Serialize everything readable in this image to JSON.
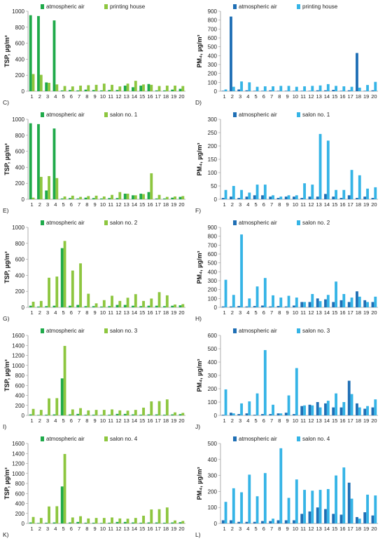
{
  "colors": {
    "dark_green": "#1faa4a",
    "light_green": "#8dc63f",
    "dark_blue": "#1f6fb5",
    "light_blue": "#35b4e6"
  },
  "chart_data": [
    {
      "type": "bar",
      "panel_label": "C)",
      "ylabel": "TSP, µg/m³",
      "ylim": [
        0,
        1000
      ],
      "yticks": [
        0,
        200,
        400,
        600,
        800,
        1000
      ],
      "categories": [
        "1",
        "2",
        "3",
        "4",
        "5",
        "6",
        "7",
        "8",
        "9",
        "10",
        "11",
        "12",
        "13",
        "14",
        "15",
        "16",
        "17",
        "18",
        "19",
        "20"
      ],
      "legend_position": "top-left",
      "series": [
        {
          "name": "atmospheric air",
          "color": "dark_green",
          "values": [
            950,
            940,
            110,
            885,
            10,
            15,
            10,
            20,
            15,
            10,
            15,
            15,
            70,
            50,
            70,
            90,
            10,
            10,
            20,
            30
          ]
        },
        {
          "name": "printing house",
          "color": "light_green",
          "values": [
            215,
            205,
            105,
            85,
            65,
            60,
            70,
            75,
            80,
            95,
            80,
            60,
            95,
            130,
            85,
            80,
            65,
            70,
            70,
            65
          ]
        }
      ]
    },
    {
      "type": "bar",
      "panel_label": "D)",
      "ylabel": "PM₄, µg/m³",
      "ylim": [
        0,
        900
      ],
      "yticks": [
        0,
        100,
        200,
        300,
        400,
        500,
        600,
        700,
        800,
        900
      ],
      "categories": [
        "1",
        "2",
        "3",
        "4",
        "5",
        "6",
        "7",
        "8",
        "9",
        "10",
        "11",
        "12",
        "13",
        "14",
        "15",
        "16",
        "17",
        "18",
        "19",
        "20"
      ],
      "legend_position": "top-left",
      "series": [
        {
          "name": "atmospheric air",
          "color": "dark_blue",
          "values": [
            5,
            840,
            20,
            10,
            5,
            5,
            10,
            5,
            5,
            5,
            5,
            5,
            10,
            10,
            15,
            5,
            10,
            430,
            5,
            10
          ]
        },
        {
          "name": "printing house",
          "color": "light_blue",
          "values": [
            20,
            50,
            110,
            100,
            50,
            55,
            55,
            60,
            60,
            50,
            55,
            60,
            65,
            80,
            60,
            55,
            50,
            40,
            70,
            105
          ]
        }
      ]
    },
    {
      "type": "bar",
      "panel_label": "E)",
      "ylabel": "TSP, µg/m³",
      "ylim": [
        0,
        1000
      ],
      "yticks": [
        0,
        200,
        400,
        600,
        800,
        1000
      ],
      "categories": [
        "1",
        "2",
        "3",
        "4",
        "5",
        "6",
        "7",
        "8",
        "9",
        "10",
        "11",
        "12",
        "13",
        "14",
        "15",
        "16",
        "17",
        "18",
        "19",
        "20"
      ],
      "legend_position": "top-left",
      "series": [
        {
          "name": "atmospheric air",
          "color": "dark_green",
          "values": [
            950,
            940,
            110,
            885,
            10,
            15,
            10,
            20,
            15,
            10,
            15,
            15,
            70,
            50,
            70,
            90,
            10,
            10,
            20,
            30
          ]
        },
        {
          "name": "salon no. 1",
          "color": "light_green",
          "values": [
            20,
            280,
            290,
            265,
            35,
            45,
            30,
            40,
            45,
            35,
            55,
            90,
            70,
            50,
            65,
            325,
            55,
            30,
            35,
            40
          ]
        }
      ]
    },
    {
      "type": "bar",
      "panel_label": "F)",
      "ylabel": "PM₄, µg/m³",
      "ylim": [
        0,
        300
      ],
      "yticks": [
        0,
        50,
        100,
        150,
        200,
        250,
        300
      ],
      "categories": [
        "1",
        "2",
        "3",
        "4",
        "5",
        "6",
        "7",
        "8",
        "9",
        "10",
        "11",
        "12",
        "13",
        "14",
        "15",
        "16",
        "17",
        "18",
        "19",
        "20"
      ],
      "legend_position": "top-left",
      "series": [
        {
          "name": "atmospheric air",
          "color": "dark_blue",
          "values": [
            5,
            10,
            5,
            10,
            15,
            15,
            10,
            5,
            10,
            10,
            5,
            10,
            10,
            20,
            10,
            5,
            15,
            5,
            10,
            5
          ]
        },
        {
          "name": "salon no. 1",
          "color": "light_blue",
          "values": [
            35,
            50,
            35,
            25,
            55,
            55,
            15,
            10,
            15,
            15,
            60,
            55,
            245,
            220,
            35,
            35,
            110,
            90,
            40,
            45
          ]
        }
      ]
    },
    {
      "type": "bar",
      "panel_label": "G)",
      "ylabel": "TSP, µg/m³",
      "ylim": [
        0,
        1000
      ],
      "yticks": [
        0,
        200,
        400,
        600,
        800,
        1000
      ],
      "categories": [
        "1",
        "2",
        "3",
        "4",
        "5",
        "6",
        "7",
        "8",
        "9",
        "10",
        "11",
        "12",
        "13",
        "14",
        "15",
        "16",
        "17",
        "18",
        "19",
        "20"
      ],
      "legend_position": "top-left",
      "series": [
        {
          "name": "atmospheric air",
          "color": "dark_green",
          "values": [
            20,
            10,
            15,
            20,
            740,
            20,
            30,
            15,
            15,
            10,
            15,
            30,
            30,
            20,
            15,
            20,
            20,
            15,
            20,
            25
          ]
        },
        {
          "name": "salon no. 2",
          "color": "light_green",
          "values": [
            70,
            80,
            370,
            385,
            830,
            460,
            550,
            170,
            50,
            90,
            145,
            80,
            120,
            165,
            80,
            110,
            190,
            150,
            35,
            40
          ]
        }
      ]
    },
    {
      "type": "bar",
      "panel_label": "H)",
      "ylabel": "PM₄, µg/m³",
      "ylim": [
        0,
        900
      ],
      "yticks": [
        0,
        100,
        200,
        300,
        400,
        500,
        600,
        700,
        800,
        900
      ],
      "categories": [
        "1",
        "2",
        "3",
        "4",
        "5",
        "6",
        "7",
        "8",
        "9",
        "10",
        "11",
        "12",
        "13",
        "14",
        "15",
        "16",
        "17",
        "18",
        "19",
        "20"
      ],
      "legend_position": "top-left",
      "series": [
        {
          "name": "atmospheric air",
          "color": "dark_blue",
          "values": [
            10,
            10,
            15,
            10,
            15,
            20,
            10,
            15,
            10,
            20,
            60,
            60,
            100,
            90,
            60,
            80,
            60,
            180,
            80,
            60
          ]
        },
        {
          "name": "salon no. 2",
          "color": "light_blue",
          "values": [
            310,
            140,
            820,
            100,
            235,
            330,
            135,
            110,
            130,
            110,
            60,
            150,
            70,
            140,
            290,
            150,
            110,
            120,
            60,
            120
          ]
        }
      ]
    },
    {
      "type": "bar",
      "panel_label": "I)",
      "ylabel": "TSP, µg/m³",
      "ylim": [
        0,
        1600
      ],
      "yticks": [
        0,
        200,
        400,
        600,
        800,
        1000,
        1200,
        1400,
        1600
      ],
      "categories": [
        "1",
        "2",
        "3",
        "4",
        "5",
        "6",
        "7",
        "8",
        "9",
        "10",
        "11",
        "12",
        "13",
        "14",
        "15",
        "16",
        "17",
        "18",
        "19",
        "20"
      ],
      "legend_position": "top-left",
      "series": [
        {
          "name": "atmospheric air",
          "color": "dark_green",
          "values": [
            20,
            10,
            15,
            20,
            740,
            20,
            30,
            15,
            15,
            10,
            15,
            30,
            30,
            20,
            15,
            20,
            20,
            15,
            20,
            25
          ]
        },
        {
          "name": "salon no. 3",
          "color": "light_green",
          "values": [
            130,
            110,
            340,
            345,
            1390,
            120,
            145,
            100,
            110,
            110,
            120,
            100,
            95,
            110,
            155,
            280,
            285,
            320,
            60,
            50
          ]
        }
      ]
    },
    {
      "type": "bar",
      "panel_label": "J)",
      "ylabel": "PM₄, µg/m³",
      "ylim": [
        0,
        600
      ],
      "yticks": [
        0,
        100,
        200,
        300,
        400,
        500,
        600
      ],
      "categories": [
        "1",
        "2",
        "3",
        "4",
        "5",
        "6",
        "7",
        "8",
        "9",
        "10",
        "11",
        "12",
        "13",
        "14",
        "15",
        "16",
        "17",
        "18",
        "19",
        "20"
      ],
      "legend_position": "top-left",
      "series": [
        {
          "name": "atmospheric air",
          "color": "dark_blue",
          "values": [
            5,
            20,
            10,
            15,
            5,
            10,
            10,
            15,
            20,
            10,
            70,
            80,
            100,
            90,
            60,
            60,
            260,
            90,
            50,
            60
          ]
        },
        {
          "name": "salon no. 3",
          "color": "light_blue",
          "values": [
            195,
            15,
            90,
            105,
            165,
            490,
            80,
            15,
            150,
            355,
            75,
            75,
            60,
            110,
            165,
            100,
            160,
            60,
            70,
            120
          ]
        }
      ]
    },
    {
      "type": "bar",
      "panel_label": "K)",
      "ylabel": "TSP, µg/m³",
      "ylim": [
        0,
        1600
      ],
      "yticks": [
        0,
        200,
        400,
        600,
        800,
        1000,
        1200,
        1400,
        1600
      ],
      "categories": [
        "1",
        "2",
        "3",
        "4",
        "5",
        "6",
        "7",
        "8",
        "9",
        "10",
        "11",
        "12",
        "13",
        "14",
        "15",
        "16",
        "17",
        "18",
        "19",
        "20"
      ],
      "legend_position": "top-left",
      "series": [
        {
          "name": "atmospheric air",
          "color": "dark_green",
          "values": [
            20,
            10,
            15,
            20,
            740,
            20,
            30,
            15,
            15,
            10,
            15,
            30,
            30,
            20,
            15,
            20,
            20,
            15,
            20,
            25
          ]
        },
        {
          "name": "salon no. 4",
          "color": "light_green",
          "values": [
            130,
            110,
            340,
            345,
            1390,
            120,
            145,
            100,
            110,
            110,
            120,
            100,
            95,
            110,
            155,
            280,
            285,
            320,
            60,
            50
          ]
        }
      ]
    },
    {
      "type": "bar",
      "panel_label": "L)",
      "ylabel": "PM₄, µg/m³",
      "ylim": [
        0,
        500
      ],
      "yticks": [
        0,
        100,
        200,
        300,
        400,
        500
      ],
      "categories": [
        "1",
        "2",
        "3",
        "4",
        "5",
        "6",
        "7",
        "8",
        "9",
        "10",
        "11",
        "12",
        "13",
        "14",
        "15",
        "16",
        "17",
        "18",
        "19",
        "20"
      ],
      "legend_position": "top-left",
      "series": [
        {
          "name": "atmospheric air",
          "color": "dark_blue",
          "values": [
            20,
            20,
            10,
            10,
            10,
            15,
            15,
            20,
            20,
            20,
            60,
            75,
            100,
            90,
            60,
            55,
            255,
            40,
            70,
            50
          ]
        },
        {
          "name": "salon no. 4",
          "color": "light_blue",
          "values": [
            135,
            220,
            195,
            305,
            170,
            315,
            30,
            470,
            160,
            275,
            210,
            205,
            210,
            215,
            300,
            350,
            155,
            30,
            180,
            175
          ]
        }
      ]
    }
  ]
}
